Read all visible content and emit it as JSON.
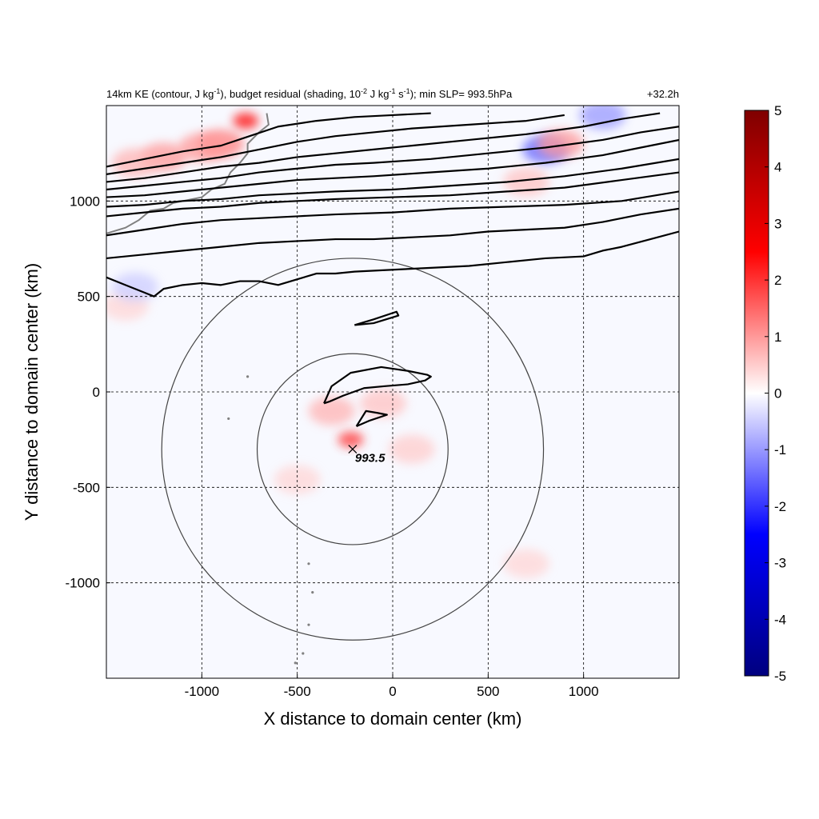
{
  "chart_data": {
    "type": "heatmap",
    "title_left": {
      "prefix": "14km KE (contour, J kg",
      "sup1": "-1",
      "mid": "), budget residual (shading, 10",
      "sup2": "-2",
      "mid2": " J kg",
      "sup3": "-1",
      "mid3": " s",
      "sup4": "-1",
      "suffix": "); min SLP= 993.5hPa"
    },
    "title_right": "+32.2h",
    "xlabel": "X distance to domain center (km)",
    "ylabel": "Y distance to domain center (km)",
    "xlim": [
      -1500,
      1500
    ],
    "ylim": [
      -1500,
      1500
    ],
    "xticks": [
      -1000,
      -500,
      0,
      500,
      1000
    ],
    "yticks": [
      -1000,
      -500,
      0,
      500,
      1000
    ],
    "grid": "dashed",
    "colorbar": {
      "min": -5,
      "max": 5,
      "ticks": [
        5,
        4,
        3,
        2,
        1,
        0,
        -1,
        -2,
        -3,
        -4,
        -5
      ],
      "colormap": [
        "#00007f",
        "#0000ff",
        "#ffffff",
        "#ff0000",
        "#7f0000"
      ]
    },
    "storm_center": {
      "x": -210,
      "y": -300,
      "label": "993.5"
    },
    "range_circles_km": [
      500,
      1000
    ],
    "ke_contours": [
      [
        [
          -1500,
          1180
        ],
        [
          -1300,
          1220
        ],
        [
          -1100,
          1260
        ],
        [
          -900,
          1290
        ],
        [
          -750,
          1340
        ],
        [
          -600,
          1390
        ],
        [
          -400,
          1420
        ],
        [
          -200,
          1440
        ],
        [
          0,
          1450
        ],
        [
          200,
          1460
        ]
      ],
      [
        [
          -1500,
          1140
        ],
        [
          -1300,
          1170
        ],
        [
          -1100,
          1200
        ],
        [
          -900,
          1230
        ],
        [
          -700,
          1270
        ],
        [
          -500,
          1310
        ],
        [
          -300,
          1340
        ],
        [
          -100,
          1360
        ],
        [
          100,
          1380
        ],
        [
          400,
          1400
        ],
        [
          700,
          1420
        ],
        [
          900,
          1450
        ]
      ],
      [
        [
          -1500,
          1100
        ],
        [
          -1300,
          1120
        ],
        [
          -1100,
          1150
        ],
        [
          -900,
          1180
        ],
        [
          -700,
          1200
        ],
        [
          -500,
          1230
        ],
        [
          -300,
          1250
        ],
        [
          -100,
          1270
        ],
        [
          100,
          1290
        ],
        [
          400,
          1320
        ],
        [
          700,
          1350
        ],
        [
          1000,
          1390
        ],
        [
          1200,
          1430
        ],
        [
          1400,
          1460
        ]
      ],
      [
        [
          -1500,
          1060
        ],
        [
          -1300,
          1080
        ],
        [
          -1100,
          1100
        ],
        [
          -900,
          1120
        ],
        [
          -700,
          1150
        ],
        [
          -500,
          1170
        ],
        [
          -300,
          1190
        ],
        [
          -100,
          1200
        ],
        [
          200,
          1220
        ],
        [
          500,
          1250
        ],
        [
          800,
          1280
        ],
        [
          1100,
          1320
        ],
        [
          1300,
          1360
        ],
        [
          1500,
          1390
        ]
      ],
      [
        [
          -1500,
          1020
        ],
        [
          -1300,
          1030
        ],
        [
          -1100,
          1050
        ],
        [
          -900,
          1070
        ],
        [
          -700,
          1090
        ],
        [
          -500,
          1110
        ],
        [
          -300,
          1120
        ],
        [
          -100,
          1130
        ],
        [
          200,
          1150
        ],
        [
          500,
          1170
        ],
        [
          800,
          1200
        ],
        [
          1100,
          1240
        ],
        [
          1300,
          1280
        ],
        [
          1500,
          1320
        ]
      ],
      [
        [
          -1500,
          970
        ],
        [
          -1300,
          980
        ],
        [
          -1100,
          1000
        ],
        [
          -900,
          1010
        ],
        [
          -700,
          1030
        ],
        [
          -500,
          1040
        ],
        [
          -300,
          1050
        ],
        [
          0,
          1060
        ],
        [
          300,
          1080
        ],
        [
          600,
          1100
        ],
        [
          900,
          1130
        ],
        [
          1200,
          1170
        ],
        [
          1500,
          1220
        ]
      ],
      [
        [
          -1500,
          920
        ],
        [
          -1300,
          940
        ],
        [
          -1100,
          960
        ],
        [
          -900,
          970
        ],
        [
          -700,
          990
        ],
        [
          -500,
          1000
        ],
        [
          -300,
          1010
        ],
        [
          0,
          1020
        ],
        [
          300,
          1030
        ],
        [
          600,
          1050
        ],
        [
          900,
          1070
        ],
        [
          1200,
          1110
        ],
        [
          1500,
          1150
        ]
      ],
      [
        [
          -1500,
          820
        ],
        [
          -1300,
          850
        ],
        [
          -1100,
          880
        ],
        [
          -900,
          900
        ],
        [
          -700,
          910
        ],
        [
          -500,
          920
        ],
        [
          -300,
          930
        ],
        [
          0,
          940
        ],
        [
          300,
          960
        ],
        [
          600,
          970
        ],
        [
          900,
          980
        ],
        [
          1200,
          1000
        ],
        [
          1500,
          1050
        ]
      ],
      [
        [
          -1500,
          700
        ],
        [
          -1300,
          720
        ],
        [
          -1100,
          740
        ],
        [
          -900,
          760
        ],
        [
          -700,
          780
        ],
        [
          -500,
          790
        ],
        [
          -300,
          800
        ],
        [
          -100,
          800
        ],
        [
          100,
          810
        ],
        [
          300,
          820
        ],
        [
          500,
          840
        ],
        [
          700,
          850
        ],
        [
          900,
          860
        ],
        [
          1100,
          890
        ],
        [
          1300,
          930
        ],
        [
          1500,
          960
        ]
      ],
      [
        [
          -1500,
          600
        ],
        [
          -1400,
          560
        ],
        [
          -1300,
          520
        ],
        [
          -1250,
          500
        ],
        [
          -1200,
          540
        ],
        [
          -1100,
          560
        ],
        [
          -1000,
          570
        ],
        [
          -900,
          560
        ],
        [
          -800,
          580
        ],
        [
          -700,
          580
        ],
        [
          -600,
          560
        ],
        [
          -500,
          590
        ],
        [
          -400,
          620
        ],
        [
          -300,
          620
        ],
        [
          -200,
          630
        ],
        [
          0,
          640
        ],
        [
          200,
          650
        ],
        [
          400,
          660
        ],
        [
          600,
          680
        ],
        [
          800,
          700
        ],
        [
          1000,
          710
        ],
        [
          1100,
          740
        ],
        [
          1200,
          760
        ],
        [
          1350,
          800
        ],
        [
          1500,
          840
        ]
      ],
      [
        [
          -200,
          350
        ],
        [
          -100,
          380
        ],
        [
          20,
          420
        ],
        [
          30,
          400
        ],
        [
          -100,
          360
        ],
        [
          -200,
          350
        ]
      ],
      [
        [
          -360,
          -60
        ],
        [
          -320,
          30
        ],
        [
          -220,
          100
        ],
        [
          -60,
          130
        ],
        [
          80,
          110
        ],
        [
          180,
          90
        ],
        [
          200,
          80
        ],
        [
          170,
          60
        ],
        [
          80,
          40
        ],
        [
          -40,
          30
        ],
        [
          -150,
          20
        ],
        [
          -260,
          -20
        ],
        [
          -330,
          -50
        ],
        [
          -360,
          -60
        ]
      ],
      [
        [
          -190,
          -180
        ],
        [
          -140,
          -100
        ],
        [
          -80,
          -110
        ],
        [
          -30,
          -120
        ],
        [
          -120,
          -150
        ],
        [
          -190,
          -180
        ]
      ]
    ],
    "residual_blobs": [
      {
        "x": -770,
        "y": 1420,
        "value": 5
      },
      {
        "x": -900,
        "y": 1300,
        "value": 2.5
      },
      {
        "x": -1200,
        "y": 1230,
        "value": 2
      },
      {
        "x": -1000,
        "y": 1280,
        "value": 2
      },
      {
        "x": -1350,
        "y": 1200,
        "value": 1.5
      },
      {
        "x": 800,
        "y": 1270,
        "value": -3
      },
      {
        "x": 880,
        "y": 1300,
        "value": 2
      },
      {
        "x": 1100,
        "y": 1450,
        "value": -2
      },
      {
        "x": 700,
        "y": 1100,
        "value": 1.2
      },
      {
        "x": -220,
        "y": -250,
        "value": 4
      },
      {
        "x": -320,
        "y": -100,
        "value": 1.5
      },
      {
        "x": -50,
        "y": -60,
        "value": 1.2
      },
      {
        "x": 100,
        "y": -300,
        "value": 1
      },
      {
        "x": -500,
        "y": -460,
        "value": 0.8
      },
      {
        "x": 700,
        "y": -900,
        "value": 0.8
      },
      {
        "x": -1400,
        "y": 450,
        "value": 0.8
      },
      {
        "x": -1350,
        "y": 550,
        "value": -1
      }
    ]
  }
}
